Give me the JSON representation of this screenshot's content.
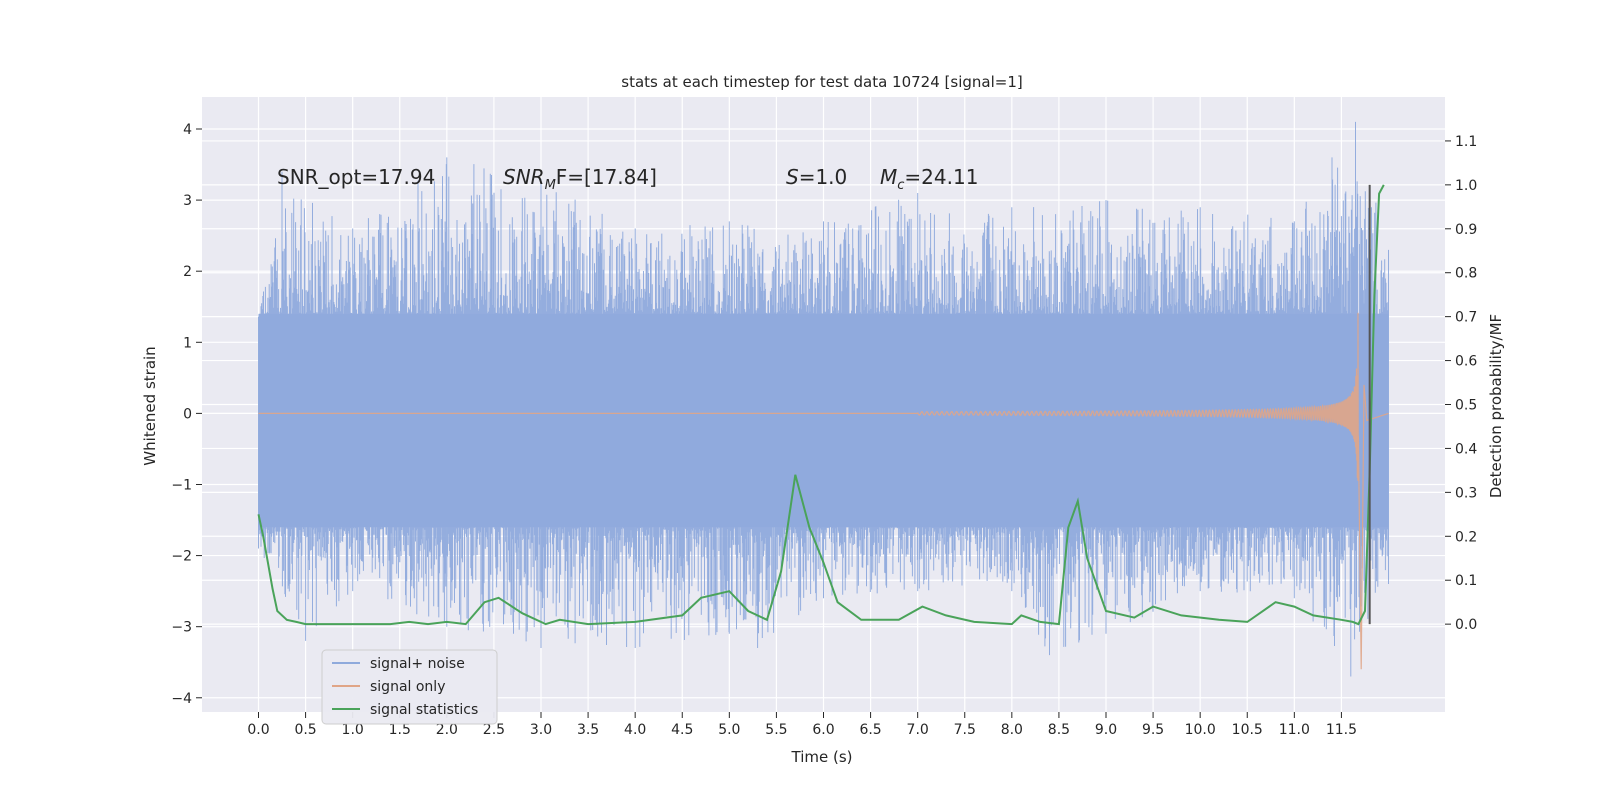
{
  "chart_data": {
    "type": "line",
    "title": "stats at each timestep for test data 10724 [signal=1]",
    "xlabel": "Time (s)",
    "ylabel": "Whitened strain",
    "ylabel_right": "Detection probability/MF",
    "xlim": [
      -0.6,
      12.6
    ],
    "ylim": [
      -4.2,
      4.45
    ],
    "ylim_right": [
      -0.2,
      1.2
    ],
    "xticks": [
      0.0,
      0.5,
      1.0,
      1.5,
      2.0,
      2.5,
      3.0,
      3.5,
      4.0,
      4.5,
      5.0,
      5.5,
      6.0,
      6.5,
      7.0,
      7.5,
      8.0,
      8.5,
      9.0,
      9.5,
      10.0,
      10.5,
      11.0,
      11.5
    ],
    "xtick_labels": [
      "0.0",
      "0.5",
      "1.0",
      "1.5",
      "2.0",
      "2.5",
      "3.0",
      "3.5",
      "4.0",
      "4.5",
      "5.0",
      "5.5",
      "6.0",
      "6.5",
      "7.0",
      "7.5",
      "8.0",
      "8.5",
      "9.0",
      "9.5",
      "10.0",
      "10.5",
      "11.0",
      "11.5"
    ],
    "yticks": [
      -4,
      -3,
      -2,
      -1,
      0,
      1,
      2,
      3,
      4
    ],
    "ytick_labels": [
      "−4",
      "−3",
      "−2",
      "−1",
      "0",
      "1",
      "2",
      "3",
      "4"
    ],
    "yticks_right": [
      0.0,
      0.1,
      0.2,
      0.3,
      0.4,
      0.5,
      0.6,
      0.7,
      0.8,
      0.9,
      1.0,
      1.1
    ],
    "ytick_labels_right": [
      "0.0",
      "0.1",
      "0.2",
      "0.3",
      "0.4",
      "0.5",
      "0.6",
      "0.7",
      "0.8",
      "0.9",
      "1.0",
      "1.1"
    ],
    "grid": true,
    "legend_position": "lower-left",
    "annotations": {
      "snr_opt": "SNR_opt=17.94",
      "snr_mf_base": "SNR",
      "snr_mf_sub": "M",
      "snr_mf_rest": "F=[17.84]",
      "s_var": "S",
      "s_value": "=1.0",
      "mc_var": "M",
      "mc_sub": "c",
      "mc_value": "=24.11"
    },
    "colors": {
      "noise": "#8faadc",
      "signal": "#e0a587",
      "stats": "#4aa35a",
      "marker": "#555555",
      "background": "#eaeaf2",
      "grid": "#ffffff"
    },
    "series": [
      {
        "name": "signal+ noise",
        "axis": "left",
        "style": "dense-noise",
        "t_range": [
          0.0,
          12.0
        ],
        "envelope_upper": [
          [
            0.0,
            1.3
          ],
          [
            0.25,
            3.4
          ],
          [
            1.0,
            2.6
          ],
          [
            2.0,
            3.6
          ],
          [
            3.0,
            3.3
          ],
          [
            4.0,
            2.6
          ],
          [
            5.0,
            2.7
          ],
          [
            6.0,
            2.7
          ],
          [
            7.0,
            3.1
          ],
          [
            8.0,
            2.9
          ],
          [
            9.0,
            3.0
          ],
          [
            10.0,
            2.9
          ],
          [
            11.0,
            2.7
          ],
          [
            11.4,
            3.6
          ],
          [
            11.65,
            4.1
          ],
          [
            12.0,
            2.3
          ]
        ],
        "envelope_lower": [
          [
            0.0,
            -1.9
          ],
          [
            0.5,
            -3.2
          ],
          [
            1.0,
            -2.5
          ],
          [
            2.0,
            -3.0
          ],
          [
            3.0,
            -3.3
          ],
          [
            4.0,
            -3.3
          ],
          [
            5.0,
            -3.1
          ],
          [
            5.3,
            -3.3
          ],
          [
            6.0,
            -2.6
          ],
          [
            7.0,
            -2.5
          ],
          [
            8.0,
            -2.5
          ],
          [
            8.4,
            -3.4
          ],
          [
            9.0,
            -3.1
          ],
          [
            10.0,
            -2.5
          ],
          [
            11.0,
            -2.6
          ],
          [
            11.6,
            -3.7
          ],
          [
            12.0,
            -2.4
          ]
        ],
        "outer_band": [
          -1.6,
          1.4
        ]
      },
      {
        "name": "signal only",
        "axis": "left",
        "style": "chirp",
        "t_start": 7.0,
        "t_merger": 11.68,
        "peak_amplitude": 3.6,
        "t_end": 12.0
      },
      {
        "name": "signal statistics",
        "axis": "right",
        "style": "line",
        "points": [
          [
            0.0,
            0.25
          ],
          [
            0.05,
            0.2
          ],
          [
            0.1,
            0.14
          ],
          [
            0.15,
            0.08
          ],
          [
            0.2,
            0.03
          ],
          [
            0.3,
            0.01
          ],
          [
            0.4,
            0.005
          ],
          [
            0.5,
            0.0
          ],
          [
            0.7,
            0.0
          ],
          [
            1.0,
            0.0
          ],
          [
            1.4,
            0.0
          ],
          [
            1.6,
            0.005
          ],
          [
            1.8,
            0.0
          ],
          [
            2.0,
            0.005
          ],
          [
            2.2,
            0.0
          ],
          [
            2.4,
            0.05
          ],
          [
            2.55,
            0.06
          ],
          [
            2.8,
            0.025
          ],
          [
            3.05,
            0.0
          ],
          [
            3.2,
            0.01
          ],
          [
            3.5,
            0.0
          ],
          [
            4.0,
            0.005
          ],
          [
            4.5,
            0.02
          ],
          [
            4.7,
            0.06
          ],
          [
            5.0,
            0.075
          ],
          [
            5.2,
            0.03
          ],
          [
            5.4,
            0.01
          ],
          [
            5.55,
            0.12
          ],
          [
            5.7,
            0.34
          ],
          [
            5.85,
            0.22
          ],
          [
            6.0,
            0.14
          ],
          [
            6.15,
            0.05
          ],
          [
            6.4,
            0.01
          ],
          [
            6.8,
            0.01
          ],
          [
            7.05,
            0.04
          ],
          [
            7.3,
            0.02
          ],
          [
            7.6,
            0.005
          ],
          [
            8.0,
            0.0
          ],
          [
            8.1,
            0.02
          ],
          [
            8.3,
            0.005
          ],
          [
            8.5,
            0.0
          ],
          [
            8.6,
            0.22
          ],
          [
            8.7,
            0.28
          ],
          [
            8.8,
            0.15
          ],
          [
            9.0,
            0.03
          ],
          [
            9.3,
            0.015
          ],
          [
            9.5,
            0.04
          ],
          [
            9.8,
            0.02
          ],
          [
            10.2,
            0.01
          ],
          [
            10.5,
            0.005
          ],
          [
            10.8,
            0.05
          ],
          [
            11.0,
            0.04
          ],
          [
            11.2,
            0.02
          ],
          [
            11.5,
            0.01
          ],
          [
            11.62,
            0.005
          ],
          [
            11.68,
            0.0
          ],
          [
            11.75,
            0.03
          ],
          [
            11.8,
            0.35
          ],
          [
            11.85,
            0.75
          ],
          [
            11.9,
            0.98
          ],
          [
            11.95,
            1.0
          ]
        ]
      }
    ],
    "vertical_marker": {
      "x": 11.8,
      "y_range_right": [
        0.0,
        1.0
      ]
    }
  }
}
